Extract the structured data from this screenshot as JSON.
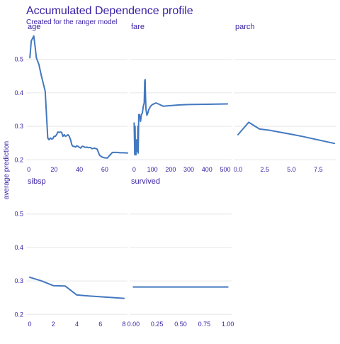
{
  "title": "Accumulated Dependence profile",
  "subtitle": "Created for the ranger model",
  "ylabel": "average prediction",
  "chart_data": {
    "type": "line",
    "ylim": [
      0.19,
      0.58
    ],
    "y_ticks": [
      0.2,
      0.3,
      0.4,
      0.5
    ],
    "y_tick_labels": [
      "0.2",
      "0.3",
      "0.4",
      "0.5"
    ],
    "grid": true,
    "panels": [
      {
        "name": "age",
        "xlim": [
          -2,
          78
        ],
        "x_ticks": [
          0,
          20,
          40,
          60
        ],
        "x_tick_labels": [
          "0",
          "20",
          "40",
          "60"
        ],
        "series": [
          {
            "x": [
              0.9,
              2,
              4,
              5,
              6,
              7,
              8,
              10,
              13,
              15,
              16,
              17,
              18,
              19,
              20,
              21,
              22,
              23,
              24,
              25,
              26,
              27,
              28,
              29,
              30,
              31,
              32,
              33,
              34,
              35,
              36,
              37,
              38,
              39,
              40,
              41,
              42,
              43,
              44,
              45,
              46,
              47,
              48,
              49,
              50,
              52,
              54,
              56,
              58,
              59,
              60,
              62,
              66,
              70,
              72,
              75,
              80
            ],
            "y": [
              0.505,
              0.555,
              0.57,
              0.54,
              0.505,
              0.495,
              0.485,
              0.45,
              0.405,
              0.265,
              0.26,
              0.265,
              0.262,
              0.263,
              0.27,
              0.27,
              0.275,
              0.283,
              0.282,
              0.283,
              0.282,
              0.27,
              0.275,
              0.27,
              0.272,
              0.275,
              0.27,
              0.26,
              0.245,
              0.24,
              0.24,
              0.238,
              0.242,
              0.24,
              0.237,
              0.235,
              0.24,
              0.24,
              0.238,
              0.237,
              0.238,
              0.236,
              0.237,
              0.236,
              0.233,
              0.235,
              0.232,
              0.213,
              0.208,
              0.207,
              0.206,
              0.205,
              0.222,
              0.222,
              0.221,
              0.221,
              0.22
            ]
          }
        ]
      },
      {
        "name": "fare",
        "xlim": [
          -25,
          535
        ],
        "x_ticks": [
          0,
          100,
          200,
          300,
          400,
          500
        ],
        "x_tick_labels": [
          "0",
          "100",
          "200",
          "300",
          "400",
          "500"
        ],
        "series": [
          {
            "x": [
              0,
              3,
              5,
              7,
              8,
              10,
              12,
              14,
              16,
              18,
              20,
              22,
              25,
              28,
              30,
              35,
              40,
              45,
              50,
              55,
              58,
              60,
              62,
              65,
              70,
              75,
              80,
              90,
              100,
              120,
              140,
              160,
              180,
              200,
              250,
              300,
              400,
              512
            ],
            "y": [
              0.31,
              0.215,
              0.3,
              0.22,
              0.26,
              0.215,
              0.25,
              0.23,
              0.26,
              0.225,
              0.3,
              0.22,
              0.335,
              0.332,
              0.335,
              0.315,
              0.335,
              0.34,
              0.36,
              0.37,
              0.435,
              0.44,
              0.39,
              0.35,
              0.333,
              0.34,
              0.35,
              0.36,
              0.365,
              0.37,
              0.365,
              0.36,
              0.361,
              0.362,
              0.364,
              0.365,
              0.366,
              0.367
            ]
          }
        ]
      },
      {
        "name": "parch",
        "xlim": [
          -0.4,
          9.2
        ],
        "x_ticks": [
          0,
          2.5,
          5,
          7.5
        ],
        "x_tick_labels": [
          "0.0",
          "2.5",
          "5.0",
          "7.5"
        ],
        "series": [
          {
            "x": [
              0,
              1,
              2,
              3,
              4,
              5,
              6,
              9
            ],
            "y": [
              0.275,
              0.312,
              0.292,
              0.288,
              0.282,
              0.276,
              0.27,
              0.249
            ]
          }
        ]
      },
      {
        "name": "sibsp",
        "xlim": [
          -0.3,
          8.3
        ],
        "x_ticks": [
          0,
          2,
          4,
          6,
          8
        ],
        "x_tick_labels": [
          "0",
          "2",
          "4",
          "6",
          "8"
        ],
        "series": [
          {
            "x": [
              0,
              1,
              2,
              3,
              4,
              5,
              8
            ],
            "y": [
              0.311,
              0.3,
              0.286,
              0.285,
              0.258,
              0.255,
              0.248
            ]
          }
        ]
      },
      {
        "name": "survived",
        "xlim": [
          -0.04,
          1.04
        ],
        "x_ticks": [
          0,
          0.25,
          0.5,
          0.75,
          1
        ],
        "x_tick_labels": [
          "0.00",
          "0.25",
          "0.50",
          "0.75",
          "1.00"
        ],
        "series": [
          {
            "x": [
              0,
              1
            ],
            "y": [
              0.282,
              0.282
            ]
          }
        ]
      }
    ]
  }
}
